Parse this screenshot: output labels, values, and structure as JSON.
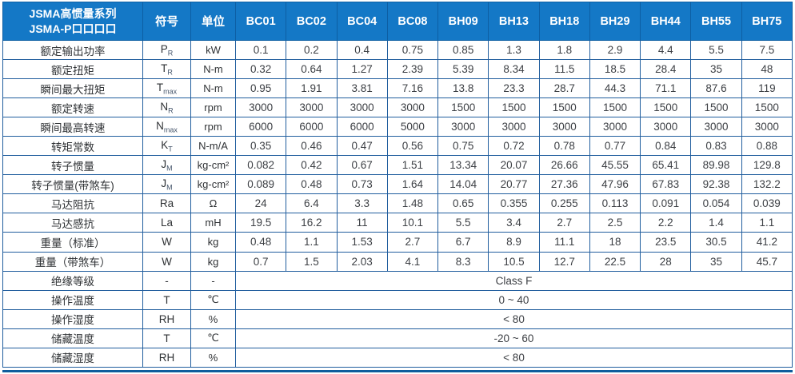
{
  "colors": {
    "header_bg": "#1478C6",
    "header_text": "#FFFFFF",
    "inner_border": "#215E9E",
    "outer_bottom_bar": "#0F5C9C",
    "body_text": "#3D4045"
  },
  "header": {
    "title_line1": "JSMA高惯量系列",
    "title_line2": "JSMA-P口口口口",
    "symbol_label": "符号",
    "unit_label": "单位",
    "models": [
      "BC01",
      "BC02",
      "BC04",
      "BC08",
      "BH09",
      "BH13",
      "BH18",
      "BH29",
      "BH44",
      "BH55",
      "BH75"
    ]
  },
  "rows": [
    {
      "label": "额定输出功率",
      "symbol": "P",
      "sub": "R",
      "unit": "kW",
      "values": [
        "0.1",
        "0.2",
        "0.4",
        "0.75",
        "0.85",
        "1.3",
        "1.8",
        "2.9",
        "4.4",
        "5.5",
        "7.5"
      ]
    },
    {
      "label": "额定扭矩",
      "symbol": "T",
      "sub": "R",
      "unit": "N-m",
      "values": [
        "0.32",
        "0.64",
        "1.27",
        "2.39",
        "5.39",
        "8.34",
        "11.5",
        "18.5",
        "28.4",
        "35",
        "48"
      ]
    },
    {
      "label": "瞬间最大扭矩",
      "symbol": "T",
      "sub": "max",
      "unit": "N-m",
      "values": [
        "0.95",
        "1.91",
        "3.81",
        "7.16",
        "13.8",
        "23.3",
        "28.7",
        "44.3",
        "71.1",
        "87.6",
        "119"
      ]
    },
    {
      "label": "额定转速",
      "symbol": "N",
      "sub": "R",
      "unit": "rpm",
      "values": [
        "3000",
        "3000",
        "3000",
        "3000",
        "1500",
        "1500",
        "1500",
        "1500",
        "1500",
        "1500",
        "1500"
      ]
    },
    {
      "label": "瞬间最高转速",
      "symbol": "N",
      "sub": "max",
      "unit": "rpm",
      "values": [
        "6000",
        "6000",
        "6000",
        "5000",
        "3000",
        "3000",
        "3000",
        "3000",
        "3000",
        "3000",
        "3000"
      ]
    },
    {
      "label": "转矩常数",
      "symbol": "K",
      "sub": "T",
      "unit": "N-m/A",
      "values": [
        "0.35",
        "0.46",
        "0.47",
        "0.56",
        "0.75",
        "0.72",
        "0.78",
        "0.77",
        "0.84",
        "0.83",
        "0.88"
      ]
    },
    {
      "label": "转子惯量",
      "symbol": "J",
      "sub": "M",
      "unit": "kg-cm²",
      "values": [
        "0.082",
        "0.42",
        "0.67",
        "1.51",
        "13.34",
        "20.07",
        "26.66",
        "45.55",
        "65.41",
        "89.98",
        "129.8"
      ]
    },
    {
      "label": "转子惯量(带煞车)",
      "symbol": "J",
      "sub": "M",
      "unit": "kg-cm²",
      "values": [
        "0.089",
        "0.48",
        "0.73",
        "1.64",
        "14.04",
        "20.77",
        "27.36",
        "47.96",
        "67.83",
        "92.38",
        "132.2"
      ]
    },
    {
      "label": "马达阻抗",
      "symbol": "Ra",
      "unit": "Ω",
      "values": [
        "24",
        "6.4",
        "3.3",
        "1.48",
        "0.65",
        "0.355",
        "0.255",
        "0.113",
        "0.091",
        "0.054",
        "0.039"
      ]
    },
    {
      "label": "马达感抗",
      "symbol": "La",
      "unit": "mH",
      "values": [
        "19.5",
        "16.2",
        "11",
        "10.1",
        "5.5",
        "3.4",
        "2.7",
        "2.5",
        "2.2",
        "1.4",
        "1.1"
      ]
    },
    {
      "label": "重量（标准）",
      "symbol": "W",
      "unit": "kg",
      "values": [
        "0.48",
        "1.1",
        "1.53",
        "2.7",
        "6.7",
        "8.9",
        "11.1",
        "18",
        "23.5",
        "30.5",
        "41.2"
      ]
    },
    {
      "label": "重量（带煞车）",
      "symbol": "W",
      "unit": "kg",
      "values": [
        "0.7",
        "1.5",
        "2.03",
        "4.1",
        "8.3",
        "10.5",
        "12.7",
        "22.5",
        "28",
        "35",
        "45.7"
      ]
    },
    {
      "label": "绝缘等级",
      "symbol": "-",
      "unit": "-",
      "span_value": "Class F"
    },
    {
      "label": "操作温度",
      "symbol": "T",
      "unit": "℃",
      "span_value": "0 ~ 40"
    },
    {
      "label": "操作湿度",
      "symbol": "RH",
      "unit": "%",
      "span_value": "< 80"
    },
    {
      "label": "储藏温度",
      "symbol": "T",
      "unit": "℃",
      "span_value": "-20 ~ 60"
    },
    {
      "label": "储藏湿度",
      "symbol": "RH",
      "unit": "%",
      "span_value": "< 80"
    }
  ]
}
